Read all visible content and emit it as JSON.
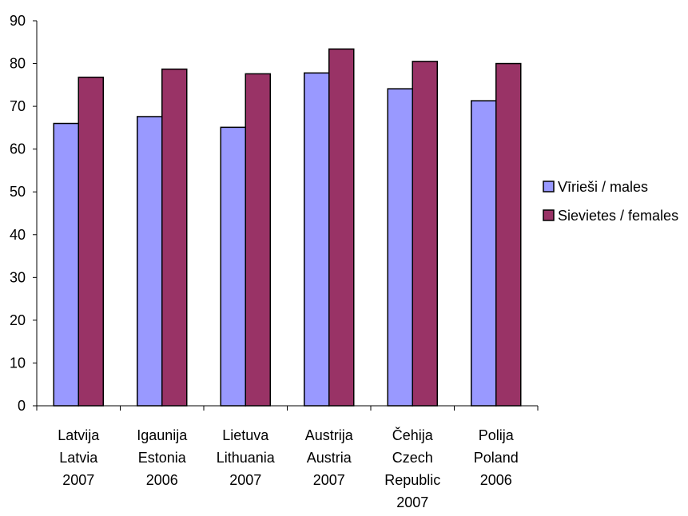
{
  "chart_data": {
    "type": "bar",
    "categories": [
      [
        "Latvija",
        "Latvia",
        "2007"
      ],
      [
        "Igaunija",
        "Estonia",
        "2006"
      ],
      [
        "Lietuva",
        "Lithuania",
        "2007"
      ],
      [
        "Austrija",
        "Austria",
        "2007"
      ],
      [
        "Čehija",
        "Czech",
        "Republic",
        "2007"
      ],
      [
        "Polija",
        "Poland",
        "2006"
      ]
    ],
    "series": [
      {
        "name": "Vīrieši / males",
        "color": "#9999ff",
        "values": [
          66.0,
          67.6,
          65.1,
          77.8,
          74.1,
          71.3
        ]
      },
      {
        "name": "Sievietes / females",
        "color": "#993366",
        "values": [
          76.8,
          78.7,
          77.6,
          83.4,
          80.5,
          80.0
        ]
      }
    ],
    "ylim": [
      0,
      90
    ],
    "yticks": [
      0,
      10,
      20,
      30,
      40,
      50,
      60,
      70,
      80,
      90
    ],
    "grid": false,
    "legend_position": "right"
  }
}
